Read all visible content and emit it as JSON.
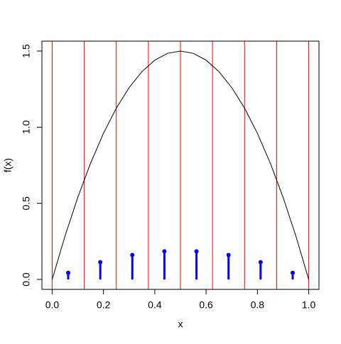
{
  "chart_data": {
    "type": "line",
    "xlabel": "x",
    "ylabel": "f(x)",
    "xlim": [
      -0.04,
      1.04
    ],
    "ylim": [
      -0.065,
      1.565
    ],
    "xticks": [
      {
        "value": 0,
        "label": "0.0"
      },
      {
        "value": 0.2,
        "label": "0.2"
      },
      {
        "value": 0.4,
        "label": "0.4"
      },
      {
        "value": 0.6,
        "label": "0.6"
      },
      {
        "value": 0.8,
        "label": "0.8"
      },
      {
        "value": 1,
        "label": "1.0"
      }
    ],
    "yticks": [
      {
        "value": 0,
        "label": "0.0"
      },
      {
        "value": 0.5,
        "label": "0.5"
      },
      {
        "value": 1,
        "label": "1.0"
      },
      {
        "value": 1.5,
        "label": "1.5"
      }
    ],
    "vlines": {
      "color": "#ff0000",
      "x": [
        0,
        0.125,
        0.25,
        0.375,
        0.5,
        0.625,
        0.75,
        0.875,
        1
      ]
    },
    "series": [
      {
        "color": "#000000",
        "style": "line",
        "x": [
          0,
          0.05,
          0.1,
          0.15,
          0.2,
          0.25,
          0.3,
          0.35,
          0.4,
          0.45,
          0.5,
          0.55,
          0.6,
          0.65,
          0.7,
          0.75,
          0.8,
          0.85,
          0.9,
          0.95,
          1
        ],
        "values": [
          0,
          0.285,
          0.54,
          0.765,
          0.96,
          1.125,
          1.26,
          1.365,
          1.44,
          1.485,
          1.5,
          1.485,
          1.44,
          1.365,
          1.26,
          1.125,
          0.96,
          0.765,
          0.54,
          0.285,
          0
        ]
      },
      {
        "color": "#0000ff",
        "style": "lollipop",
        "x": [
          0.0625,
          0.1875,
          0.3125,
          0.4375,
          0.5625,
          0.6875,
          0.8125,
          0.9375
        ],
        "values": [
          0.044,
          0.114,
          0.161,
          0.185,
          0.185,
          0.161,
          0.114,
          0.044
        ]
      }
    ]
  }
}
